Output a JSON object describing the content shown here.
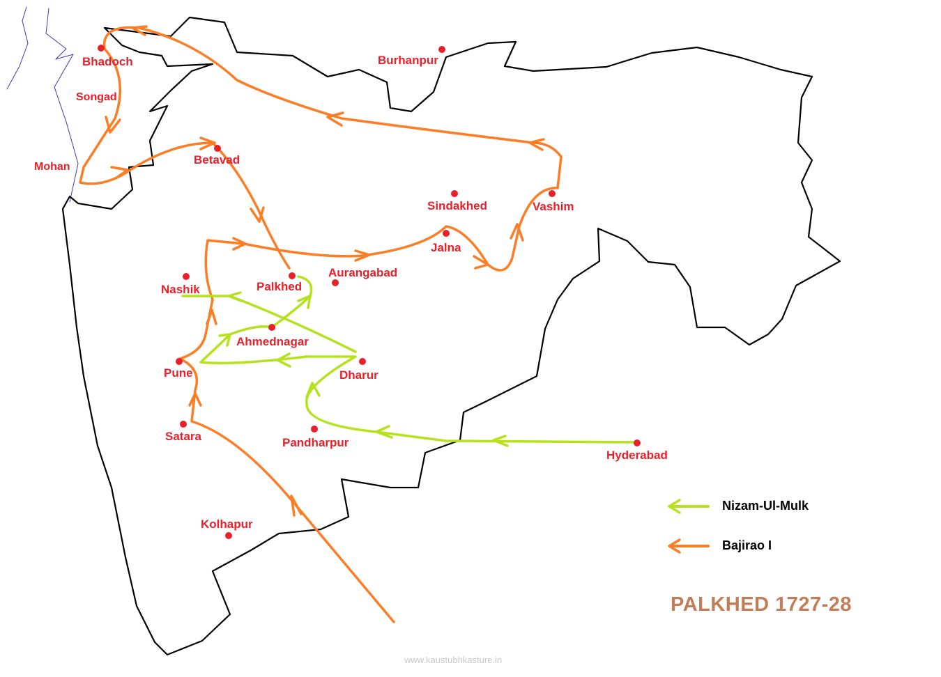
{
  "map": {
    "title": "PALKHED 1727-28",
    "credit": "www.kaustubhkasture.in",
    "colors": {
      "nizam": "#b5e21c",
      "bajirao": "#fb7d26",
      "city": "#e8202a",
      "border": "#000000",
      "coast": "#3a3ab0",
      "title": "#c17d57"
    },
    "cities": [
      {
        "name": "Bhadoch"
      },
      {
        "name": "Songad"
      },
      {
        "name": "Mohan"
      },
      {
        "name": "Betavad"
      },
      {
        "name": "Burhanpur"
      },
      {
        "name": "Sindakhed"
      },
      {
        "name": "Vashim"
      },
      {
        "name": "Jalna"
      },
      {
        "name": "Aurangabad"
      },
      {
        "name": "Nashik"
      },
      {
        "name": "Palkhed"
      },
      {
        "name": "Ahmednagar"
      },
      {
        "name": "Pune"
      },
      {
        "name": "Dharur"
      },
      {
        "name": "Satara"
      },
      {
        "name": "Pandharpur"
      },
      {
        "name": "Hyderabad"
      },
      {
        "name": "Kolhapur"
      }
    ],
    "legend": [
      {
        "label": "Nizam-Ul-Mulk",
        "color": "#b5e21c"
      },
      {
        "label": "Bajirao I",
        "color": "#fb7d26"
      }
    ]
  }
}
